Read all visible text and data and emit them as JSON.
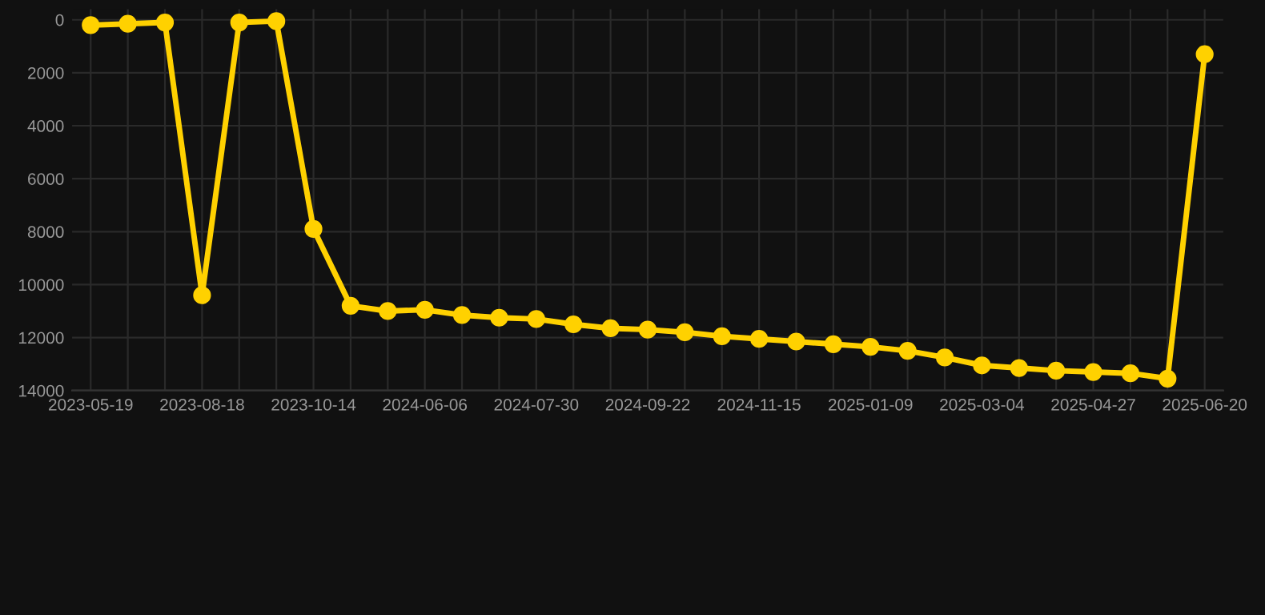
{
  "chart_data": {
    "type": "line",
    "categories": [
      "2023-05-19",
      null,
      null,
      "2023-08-18",
      null,
      null,
      "2023-10-14",
      null,
      null,
      "2024-06-06",
      null,
      null,
      "2024-07-30",
      null,
      null,
      "2024-09-22",
      null,
      null,
      "2024-11-15",
      null,
      null,
      "2025-01-09",
      null,
      null,
      "2025-03-04",
      null,
      null,
      "2025-04-27",
      null,
      null,
      "2025-06-20"
    ],
    "series": [
      {
        "color": "#ffd100",
        "values": [
          200,
          150,
          100,
          10400,
          100,
          50,
          7900,
          10800,
          11000,
          10950,
          11150,
          11250,
          11300,
          11500,
          11650,
          11700,
          11800,
          11950,
          12050,
          12150,
          12250,
          12350,
          12500,
          12750,
          13050,
          13150,
          13250,
          13300,
          13350,
          13550,
          1300
        ]
      }
    ],
    "ylim": [
      14000,
      -400
    ],
    "yticks": [
      0,
      2000,
      4000,
      6000,
      8000,
      10000,
      12000,
      14000
    ],
    "grid": true,
    "marker": "circle",
    "line_style": "solid"
  }
}
